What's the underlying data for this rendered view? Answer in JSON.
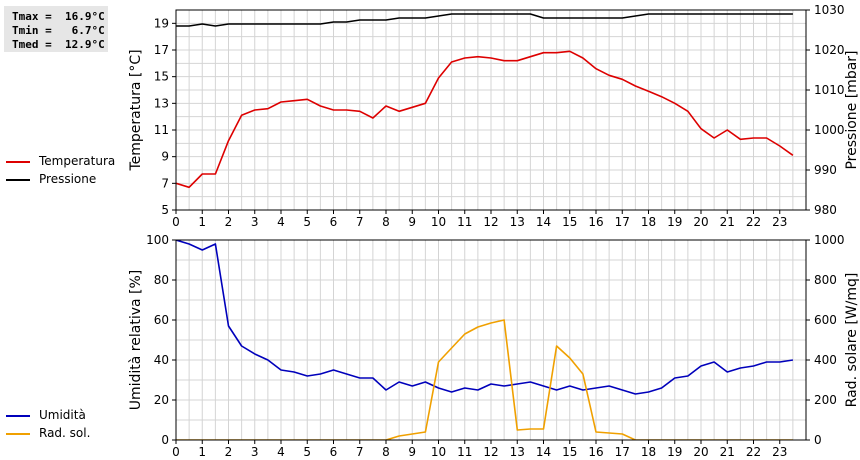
{
  "stats": {
    "tmax": "Tmax =  16.9°C",
    "tmin": "Tmin =   6.7°C",
    "tmed": "Tmed =  12.9°C"
  },
  "colors": {
    "temperature": "#dd0000",
    "pressure": "#000000",
    "humidity": "#0000bb",
    "radiation": "#f0a000",
    "grid": "#d4d4d4",
    "axis": "#000000"
  },
  "legend": {
    "top": [
      {
        "label": "Temperatura",
        "color": "#dd0000"
      },
      {
        "label": "Pressione",
        "color": "#000000"
      }
    ],
    "bottom": [
      {
        "label": "Umidità",
        "color": "#0000bb"
      },
      {
        "label": "Rad. sol.",
        "color": "#f0a000"
      }
    ]
  },
  "chart_data": [
    {
      "type": "line",
      "xlim": [
        0,
        24
      ],
      "x_ticks": [
        0,
        1,
        2,
        3,
        4,
        5,
        6,
        7,
        8,
        9,
        10,
        11,
        12,
        13,
        14,
        15,
        16,
        17,
        18,
        19,
        20,
        21,
        22,
        23
      ],
      "ylabel": "Temperatura [°C]",
      "ylim": [
        5,
        20
      ],
      "y_ticks": [
        5,
        7,
        9,
        11,
        13,
        15,
        17,
        19
      ],
      "y2label": "Pressione [mbar]",
      "y2lim": [
        980,
        1030
      ],
      "y2_ticks": [
        980,
        990,
        1000,
        1010,
        1020,
        1030
      ],
      "grid": true,
      "legend": "left",
      "series": [
        {
          "name": "Temperatura",
          "axis": "left",
          "x": [
            0,
            0.5,
            1,
            1.5,
            2,
            2.5,
            3,
            3.5,
            4,
            4.5,
            5,
            5.5,
            6,
            6.5,
            7,
            7.5,
            8,
            8.5,
            9,
            9.5,
            10,
            10.5,
            11,
            11.5,
            12,
            12.5,
            13,
            13.5,
            14,
            14.5,
            15,
            15.5,
            16,
            16.5,
            17,
            17.5,
            18,
            18.5,
            19,
            19.5,
            20,
            20.5,
            21,
            21.5,
            22,
            22.5,
            23,
            23.5
          ],
          "values": [
            7.0,
            6.7,
            7.7,
            7.7,
            10.2,
            12.1,
            12.5,
            12.6,
            13.1,
            13.2,
            13.3,
            12.8,
            12.5,
            12.5,
            12.4,
            11.9,
            12.8,
            12.4,
            12.7,
            13.0,
            14.9,
            16.1,
            16.4,
            16.5,
            16.4,
            16.2,
            16.2,
            16.5,
            16.8,
            16.8,
            16.9,
            16.4,
            15.6,
            15.1,
            14.8,
            14.3,
            13.9,
            13.5,
            13.0,
            12.4,
            11.1,
            10.4,
            11.0,
            10.3,
            10.4,
            10.4,
            9.8,
            9.1
          ]
        },
        {
          "name": "Pressione",
          "axis": "right",
          "x": [
            0,
            0.5,
            1,
            1.5,
            2,
            2.5,
            3,
            3.5,
            4,
            4.5,
            5,
            5.5,
            6,
            6.5,
            7,
            7.5,
            8,
            8.5,
            9,
            9.5,
            10,
            10.5,
            11,
            11.5,
            12,
            12.5,
            13,
            13.5,
            14,
            14.5,
            15,
            15.5,
            16,
            16.5,
            17,
            17.5,
            18,
            18.5,
            19,
            19.5,
            20,
            20.5,
            21,
            21.5,
            22,
            22.5,
            23,
            23.5
          ],
          "values": [
            1026,
            1026,
            1026.5,
            1026,
            1026.5,
            1026.5,
            1026.5,
            1026.5,
            1026.5,
            1026.5,
            1026.5,
            1026.5,
            1027,
            1027,
            1027.5,
            1027.5,
            1027.5,
            1028,
            1028,
            1028,
            1028.5,
            1029,
            1029,
            1029,
            1029,
            1029,
            1029,
            1029,
            1028,
            1028,
            1028,
            1028,
            1028,
            1028,
            1028,
            1028.5,
            1029,
            1029,
            1029,
            1029,
            1029,
            1029,
            1029,
            1029,
            1029,
            1029,
            1029,
            1029
          ]
        }
      ]
    },
    {
      "type": "line",
      "xlim": [
        0,
        24
      ],
      "x_ticks": [
        0,
        1,
        2,
        3,
        4,
        5,
        6,
        7,
        8,
        9,
        10,
        11,
        12,
        13,
        14,
        15,
        16,
        17,
        18,
        19,
        20,
        21,
        22,
        23
      ],
      "ylabel": "Umidità relativa [%]",
      "ylim": [
        0,
        100
      ],
      "y_ticks": [
        0,
        20,
        40,
        60,
        80,
        100
      ],
      "y2label": "Rad. solare [W/mq]",
      "y2lim": [
        0,
        1000
      ],
      "y2_ticks": [
        0,
        200,
        400,
        600,
        800,
        1000
      ],
      "grid": true,
      "legend": "left",
      "series": [
        {
          "name": "Umidità",
          "axis": "left",
          "x": [
            0,
            0.5,
            1,
            1.5,
            2,
            2.5,
            3,
            3.5,
            4,
            4.5,
            5,
            5.5,
            6,
            6.5,
            7,
            7.5,
            8,
            8.5,
            9,
            9.5,
            10,
            10.5,
            11,
            11.5,
            12,
            12.5,
            13,
            13.5,
            14,
            14.5,
            15,
            15.5,
            16,
            16.5,
            17,
            17.5,
            18,
            18.5,
            19,
            19.5,
            20,
            20.5,
            21,
            21.5,
            22,
            22.5,
            23,
            23.5
          ],
          "values": [
            100,
            98,
            95,
            98,
            57,
            47,
            43,
            40,
            35,
            34,
            32,
            33,
            35,
            33,
            31,
            31,
            25,
            29,
            27,
            29,
            26,
            24,
            26,
            25,
            28,
            27,
            28,
            29,
            27,
            25,
            27,
            25,
            26,
            27,
            25,
            23,
            24,
            26,
            31,
            32,
            37,
            39,
            34,
            36,
            37,
            39,
            39,
            40
          ]
        },
        {
          "name": "Rad. sol.",
          "axis": "right",
          "x": [
            0,
            1,
            2,
            3,
            4,
            5,
            6,
            7,
            8,
            8.5,
            9,
            9.5,
            10,
            10.5,
            11,
            11.5,
            12,
            12.5,
            13,
            13.5,
            14,
            14.5,
            15,
            15.5,
            16,
            16.5,
            17,
            17.5,
            18,
            19,
            20,
            21,
            22,
            23,
            23.5
          ],
          "values": [
            0,
            0,
            0,
            0,
            0,
            0,
            0,
            0,
            0,
            20,
            30,
            40,
            390,
            460,
            530,
            565,
            585,
            600,
            50,
            55,
            55,
            470,
            410,
            330,
            40,
            35,
            30,
            0,
            0,
            0,
            0,
            0,
            0,
            0,
            0
          ]
        }
      ]
    }
  ]
}
